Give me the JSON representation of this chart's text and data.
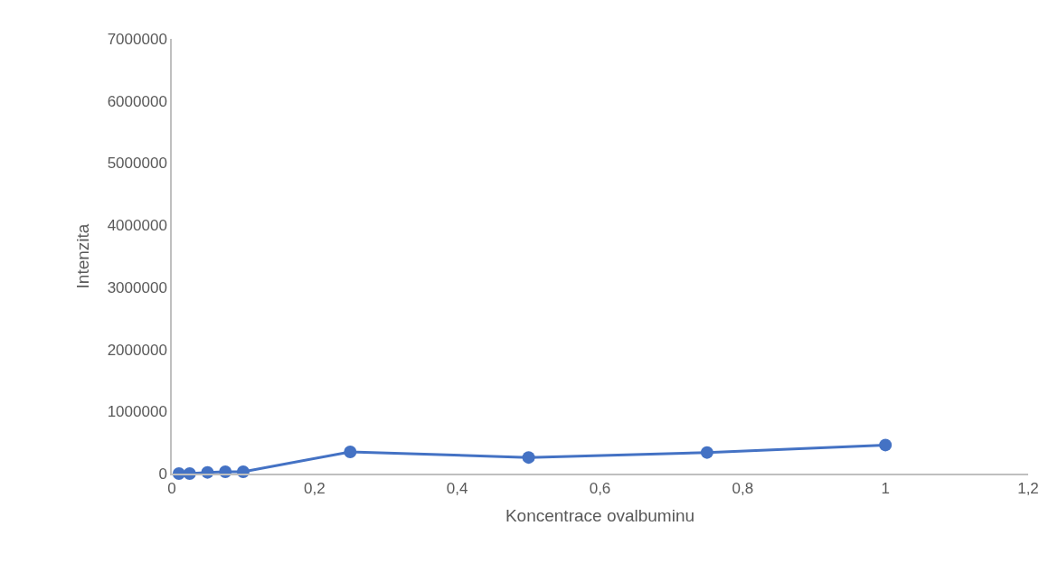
{
  "chart_data": {
    "type": "line",
    "xlabel": "Koncentrace ovalbuminu",
    "ylabel": "Intenzita",
    "x": [
      0.01,
      0.025,
      0.05,
      0.075,
      0.1,
      0.25,
      0.5,
      0.75,
      1.0
    ],
    "series": [
      {
        "color": "#4472c4",
        "values": [
          0,
          0,
          20000,
          30000,
          30000,
          350000,
          260000,
          340000,
          460000
        ]
      }
    ],
    "xlim": [
      0,
      1.2
    ],
    "xticks": [
      0,
      {
        "value": 0.2,
        "label": "0,2"
      },
      {
        "value": 0.4,
        "label": "0,4"
      },
      {
        "value": 0.6,
        "label": "0,6"
      },
      {
        "value": 0.8,
        "label": "0,8"
      },
      1,
      {
        "value": 1.2,
        "label": "1,2"
      }
    ],
    "ylim": [
      0,
      7000000
    ],
    "yticks": [
      0,
      1000000,
      2000000,
      3000000,
      4000000,
      5000000,
      6000000,
      7000000
    ],
    "legend": false,
    "marker": "circle",
    "line_style": "solid"
  }
}
